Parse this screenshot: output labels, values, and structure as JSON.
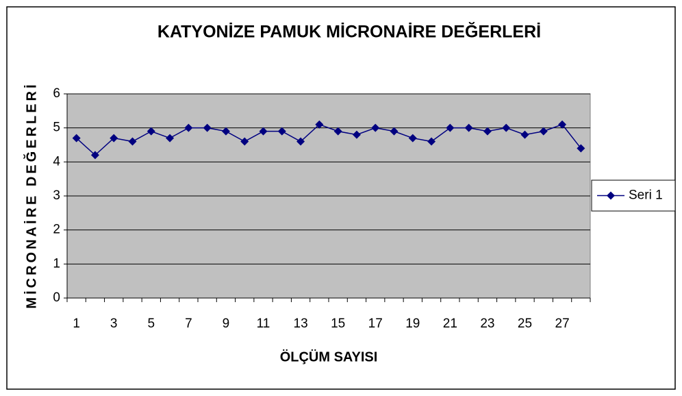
{
  "chart_data": {
    "type": "line",
    "title": "KATYONİZE PAMUK MİCRONAİRE DEĞERLERİ",
    "x_label": "ÖLÇÜM SAYISI",
    "y_label": "MİCRONAİRE DEĞERLERİ",
    "categories": [
      "1",
      null,
      "3",
      null,
      "5",
      null,
      "7",
      null,
      "9",
      null,
      "11",
      null,
      "13",
      null,
      "15",
      null,
      "17",
      null,
      "19",
      null,
      "21",
      null,
      "23",
      null,
      "25",
      null,
      "27",
      null
    ],
    "series": [
      {
        "name": "Seri 1",
        "color": "#000080",
        "values": [
          4.7,
          4.2,
          4.7,
          4.6,
          4.9,
          4.7,
          5.0,
          5.0,
          4.9,
          4.6,
          4.9,
          4.9,
          4.6,
          5.1,
          4.9,
          4.8,
          5.0,
          4.9,
          4.7,
          4.6,
          5.0,
          5.0,
          4.9,
          5.0,
          4.8,
          4.9,
          5.1,
          4.4
        ]
      }
    ],
    "ylim": [
      0,
      6
    ],
    "yticks": [
      0,
      1,
      2,
      3,
      4,
      5,
      6
    ],
    "grid": true,
    "legend": "right",
    "plot_background": "#c0c0c0"
  }
}
